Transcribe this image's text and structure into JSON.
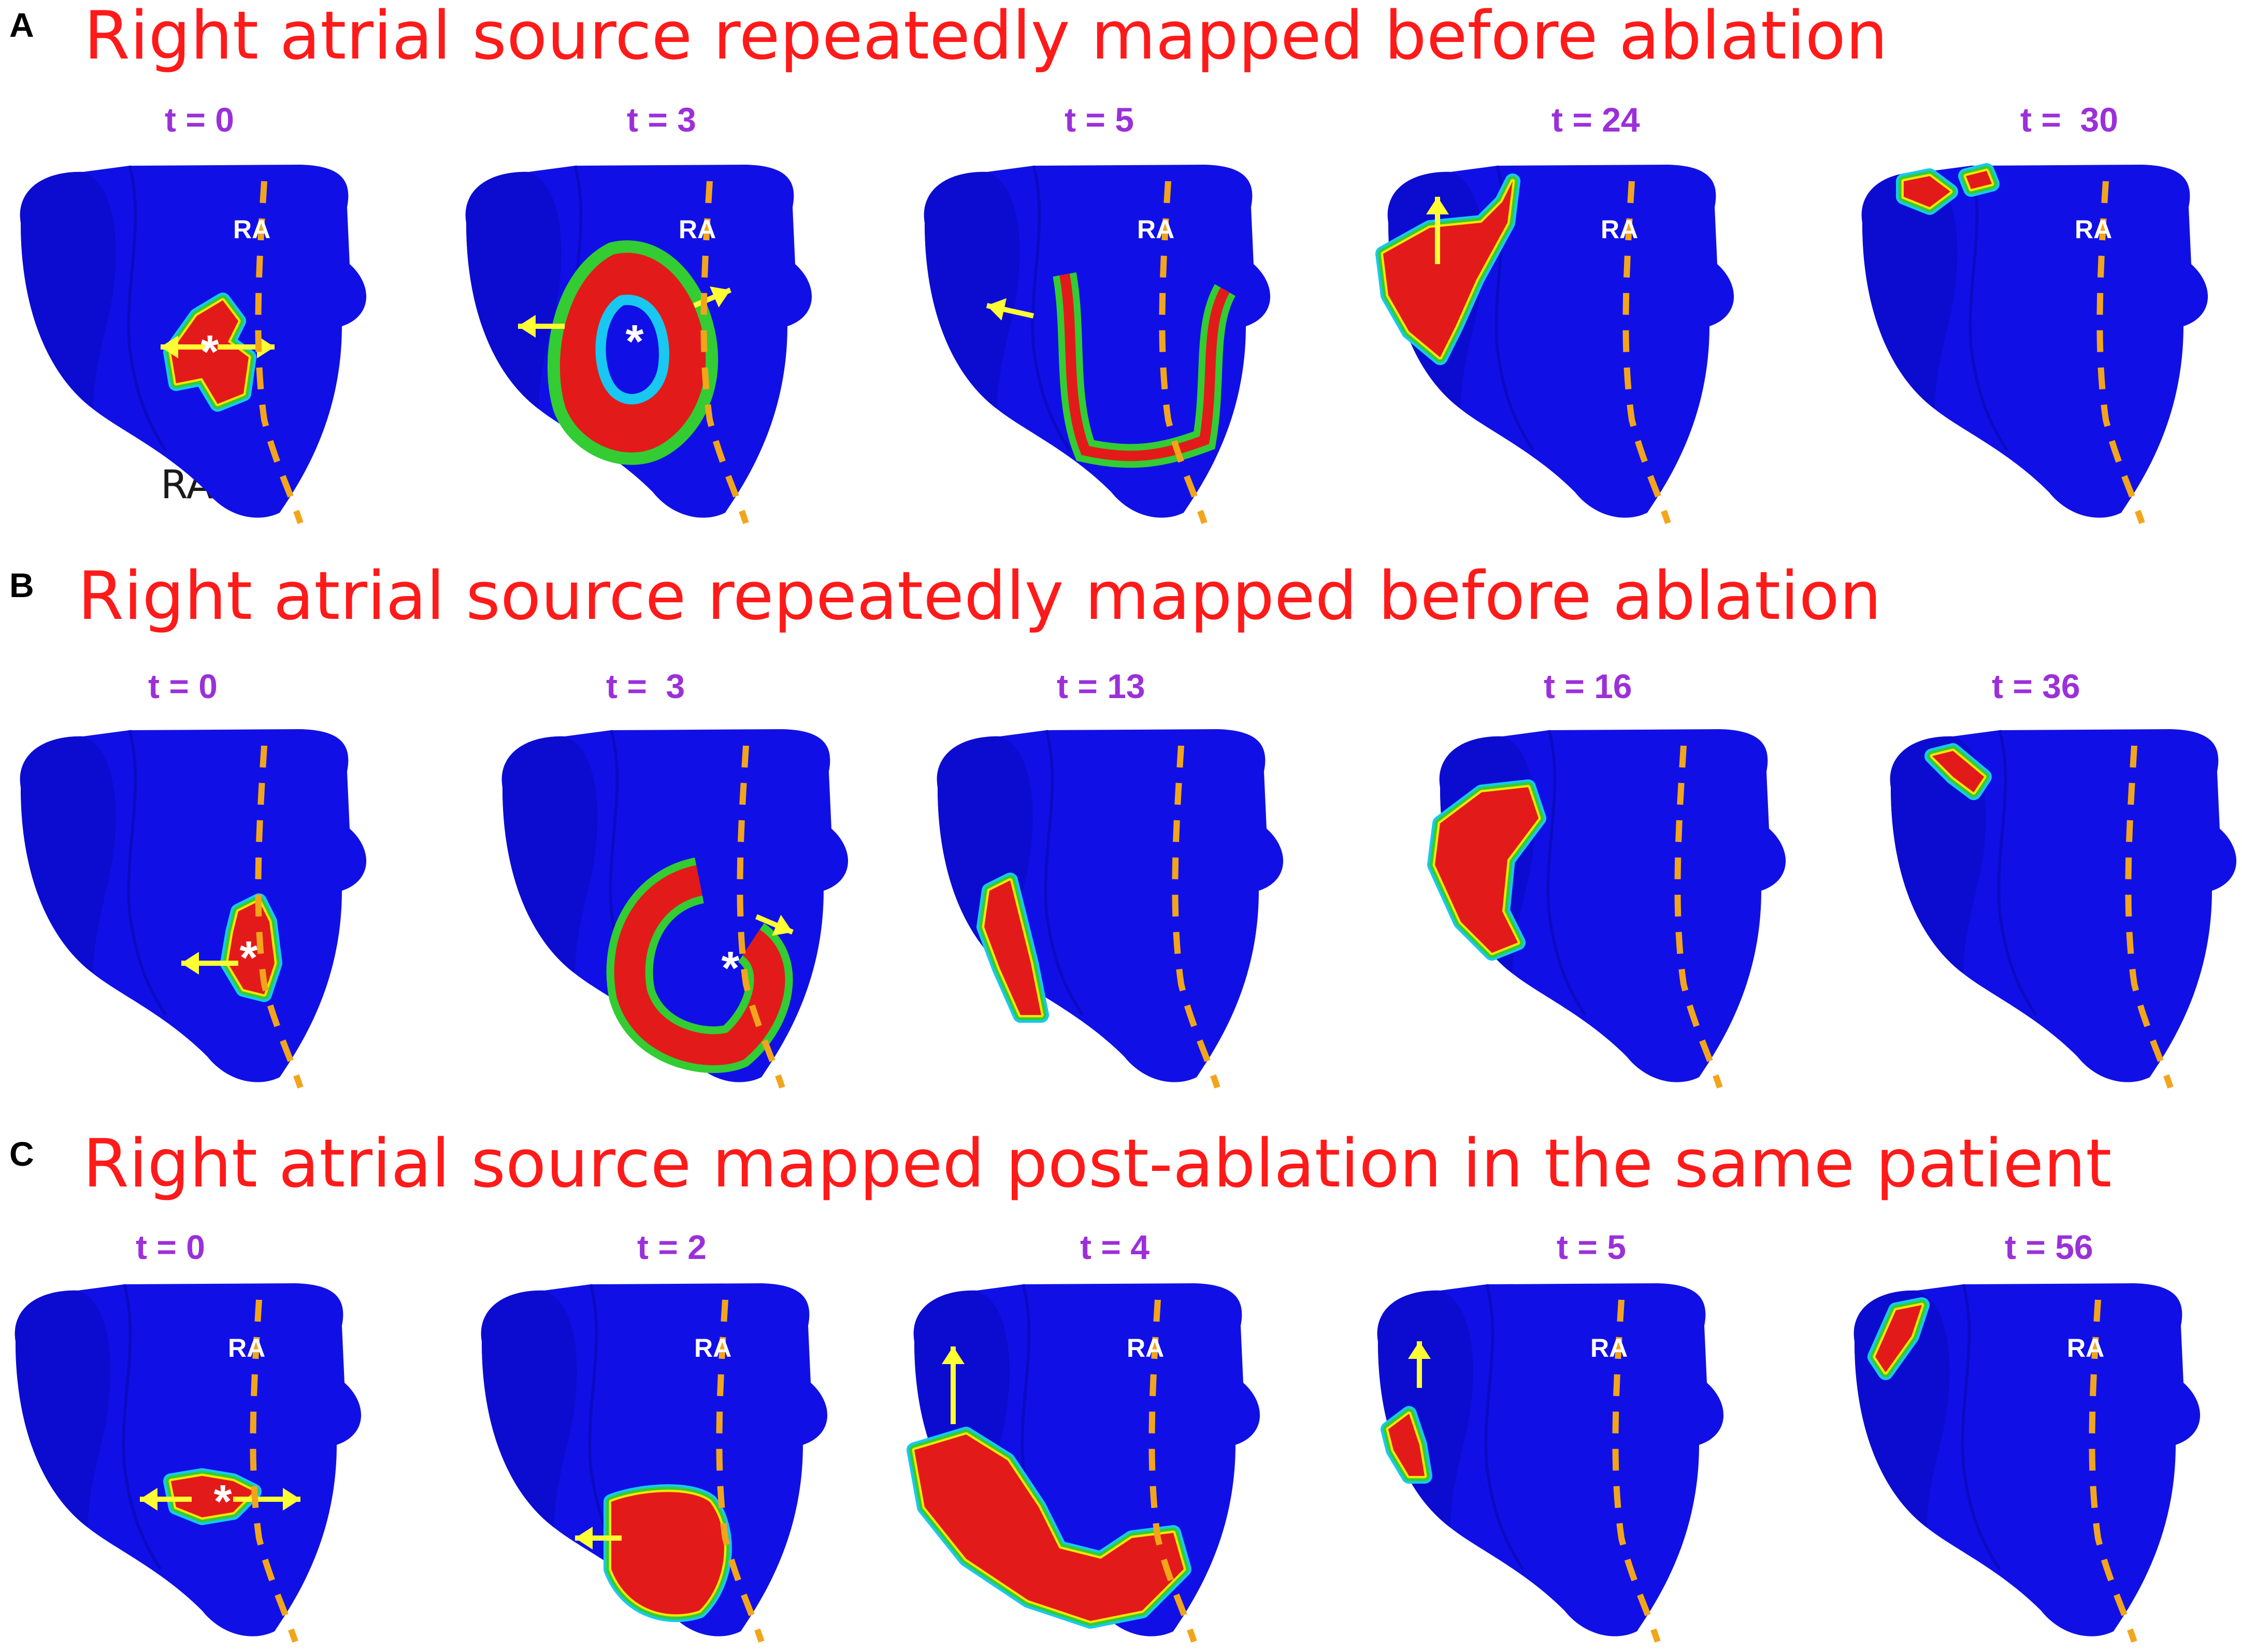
{
  "colors": {
    "title": "#ff1a1a",
    "time_label": "#9b30d9",
    "heart_blue": "#1010e6",
    "activation_red": "#e31a1a",
    "isochrone_green": "#33cc33",
    "isochrone_cyan": "#18c8f0",
    "isochrone_yellow": "#f3e600",
    "dashed_line": "#f2a51b",
    "arrow": "#ffff33"
  },
  "panels": [
    {
      "letter": "A",
      "title": "Right atrial source repeatedly mapped before ablation",
      "outer_label": "RA",
      "frames": [
        {
          "time": "t = 0",
          "ra": "RA",
          "marker": "*"
        },
        {
          "time": "t = 3",
          "ra": "RA",
          "marker": "*"
        },
        {
          "time": "t = 5",
          "ra": "RA",
          "marker": ""
        },
        {
          "time": "t = 24",
          "ra": "RA",
          "marker": ""
        },
        {
          "time": "t =  30",
          "ra": "RA",
          "marker": ""
        }
      ]
    },
    {
      "letter": "B",
      "title": "Right atrial source repeatedly mapped before ablation",
      "frames": [
        {
          "time": "t = 0",
          "ra": "",
          "marker": "*"
        },
        {
          "time": "t =  3",
          "ra": "",
          "marker": "*"
        },
        {
          "time": "t = 13",
          "ra": "",
          "marker": ""
        },
        {
          "time": "t = 16",
          "ra": "",
          "marker": ""
        },
        {
          "time": "t = 36",
          "ra": "",
          "marker": ""
        }
      ]
    },
    {
      "letter": "C",
      "title": "Right atrial source mapped post-ablation in the same patient",
      "frames": [
        {
          "time": "t = 0",
          "ra": "RA",
          "marker": "*"
        },
        {
          "time": "t = 2",
          "ra": "RA",
          "marker": ""
        },
        {
          "time": "t = 4",
          "ra": "RA",
          "marker": ""
        },
        {
          "time": "t = 5",
          "ra": "RA",
          "marker": ""
        },
        {
          "time": "t = 56",
          "ra": "RA",
          "marker": ""
        }
      ]
    }
  ]
}
